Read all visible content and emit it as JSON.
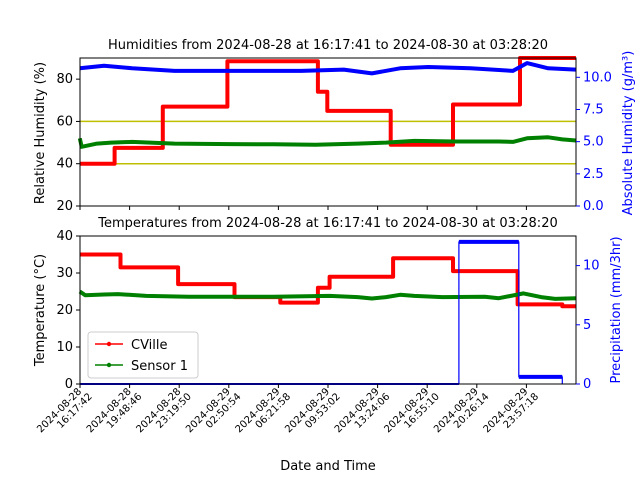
{
  "chart_data": [
    {
      "type": "line",
      "title": "Humidities from 2024-08-28 at 16:17:41 to 2024-08-30 at 03:28:20",
      "ylabel": "Relative Humidity (%)",
      "ylabel_right": "Absolute Humidity (g/m³)",
      "ylim": [
        20,
        90
      ],
      "ylim_right": [
        0,
        11.5
      ],
      "yticks": [
        "20",
        "40",
        "60",
        "80"
      ],
      "yticks_right": [
        "0.0",
        "2.5",
        "5.0",
        "7.5",
        "10.0"
      ],
      "reference_lines": [
        40,
        60
      ],
      "series": [
        {
          "color": "#ff0000",
          "axis": "left",
          "steps": [
            [
              "2024-08-28 16:17",
              40
            ],
            [
              "2024-08-28 18:45",
              40
            ],
            [
              "2024-08-28 18:45",
              47.5
            ],
            [
              "2024-08-28 22:10",
              47.5
            ],
            [
              "2024-08-28 22:10",
              67
            ],
            [
              "2024-08-29 02:45",
              67
            ],
            [
              "2024-08-29 02:45",
              88.5
            ],
            [
              "2024-08-29 09:10",
              88.5
            ],
            [
              "2024-08-29 09:10",
              74
            ],
            [
              "2024-08-29 09:50",
              74
            ],
            [
              "2024-08-29 09:50",
              65
            ],
            [
              "2024-08-29 14:20",
              65
            ],
            [
              "2024-08-29 14:20",
              49
            ],
            [
              "2024-08-29 18:45",
              49
            ],
            [
              "2024-08-29 18:45",
              68
            ],
            [
              "2024-08-29 23:30",
              68
            ],
            [
              "2024-08-29 23:30",
              90
            ],
            [
              "2024-08-30 03:28",
              90
            ]
          ]
        },
        {
          "color": "#008000",
          "axis": "left",
          "points": [
            [
              "2024-08-28 16:17",
              52
            ],
            [
              "2024-08-28 16:25",
              48
            ],
            [
              "2024-08-28 17:30",
              49.5
            ],
            [
              "2024-08-28 18:30",
              50
            ],
            [
              "2024-08-28 20:00",
              50.3
            ],
            [
              "2024-08-28 23:00",
              49.5
            ],
            [
              "2024-08-29 03:00",
              49.3
            ],
            [
              "2024-08-29 06:00",
              49.2
            ],
            [
              "2024-08-29 09:00",
              49
            ],
            [
              "2024-08-29 12:00",
              49.5
            ],
            [
              "2024-08-29 14:00",
              50
            ],
            [
              "2024-08-29 16:00",
              50.8
            ],
            [
              "2024-08-29 19:00",
              50.5
            ],
            [
              "2024-08-29 22:00",
              50.5
            ],
            [
              "2024-08-29 23:00",
              50.3
            ],
            [
              "2024-08-30 00:00",
              52
            ],
            [
              "2024-08-30 01:30",
              52.5
            ],
            [
              "2024-08-30 02:30",
              51.5
            ],
            [
              "2024-08-30 03:28",
              51
            ]
          ]
        },
        {
          "color": "#0000ff",
          "axis": "right",
          "points": [
            [
              "2024-08-28 16:17",
              10.7
            ],
            [
              "2024-08-28 18:00",
              10.9
            ],
            [
              "2024-08-28 20:00",
              10.7
            ],
            [
              "2024-08-28 23:00",
              10.5
            ],
            [
              "2024-08-29 03:00",
              10.5
            ],
            [
              "2024-08-29 08:00",
              10.5
            ],
            [
              "2024-08-29 11:00",
              10.6
            ],
            [
              "2024-08-29 13:00",
              10.3
            ],
            [
              "2024-08-29 15:00",
              10.7
            ],
            [
              "2024-08-29 17:00",
              10.8
            ],
            [
              "2024-08-29 20:00",
              10.7
            ],
            [
              "2024-08-29 23:00",
              10.5
            ],
            [
              "2024-08-30 00:00",
              11.1
            ],
            [
              "2024-08-30 01:30",
              10.7
            ],
            [
              "2024-08-30 03:28",
              10.6
            ]
          ]
        }
      ]
    },
    {
      "type": "line",
      "title": "Temperatures from 2024-08-28 at 16:17:41 to 2024-08-30 at 03:28:20",
      "xlabel": "Date and Time",
      "ylabel": "Temperature (°C)",
      "ylabel_right": "Precipitation (mm/3hr)",
      "xlim": [
        "2024-08-28 16:17:42",
        "2024-08-30 03:28:20"
      ],
      "ylim": [
        0,
        40
      ],
      "ylim_right": [
        0,
        12.5
      ],
      "yticks": [
        "0",
        "10",
        "20",
        "30",
        "40"
      ],
      "yticks_right": [
        "0",
        "5",
        "10"
      ],
      "xticks": [
        {
          "date": "2024-08-28",
          "time": "16:17:42",
          "at": "2024-08-28 16:17:42"
        },
        {
          "date": "2024-08-28",
          "time": "19:48:46",
          "at": "2024-08-28 19:48:46"
        },
        {
          "date": "2024-08-28",
          "time": "23:19:50",
          "at": "2024-08-28 23:19:50"
        },
        {
          "date": "2024-08-29",
          "time": "02:50:54",
          "at": "2024-08-29 02:50:54"
        },
        {
          "date": "2024-08-29",
          "time": "06:21:58",
          "at": "2024-08-29 06:21:58"
        },
        {
          "date": "2024-08-29",
          "time": "09:53:02",
          "at": "2024-08-29 09:53:02"
        },
        {
          "date": "2024-08-29",
          "time": "13:24:06",
          "at": "2024-08-29 13:24:06"
        },
        {
          "date": "2024-08-29",
          "time": "16:55:10",
          "at": "2024-08-29 16:55:10"
        },
        {
          "date": "2024-08-29",
          "time": "20:26:14",
          "at": "2024-08-29 20:26:14"
        },
        {
          "date": "2024-08-29",
          "time": "23:57:18",
          "at": "2024-08-29 23:57:18"
        }
      ],
      "legend": {
        "placement": "lower-left"
      },
      "series": [
        {
          "name": "CVille",
          "color": "#ff0000",
          "axis": "left",
          "steps": [
            [
              "2024-08-28 16:17",
              35
            ],
            [
              "2024-08-28 19:10",
              35
            ],
            [
              "2024-08-28 19:10",
              31.5
            ],
            [
              "2024-08-28 23:15",
              31.5
            ],
            [
              "2024-08-28 23:15",
              27
            ],
            [
              "2024-08-29 03:15",
              27
            ],
            [
              "2024-08-29 03:15",
              23.5
            ],
            [
              "2024-08-29 06:30",
              23.5
            ],
            [
              "2024-08-29 06:30",
              22
            ],
            [
              "2024-08-29 09:10",
              22
            ],
            [
              "2024-08-29 09:10",
              26
            ],
            [
              "2024-08-29 10:00",
              26
            ],
            [
              "2024-08-29 10:00",
              29
            ],
            [
              "2024-08-29 14:30",
              29
            ],
            [
              "2024-08-29 14:30",
              34
            ],
            [
              "2024-08-29 18:45",
              34
            ],
            [
              "2024-08-29 18:45",
              30.5
            ],
            [
              "2024-08-29 23:20",
              30.5
            ],
            [
              "2024-08-29 23:20",
              21.5
            ],
            [
              "2024-08-30 02:30",
              21.5
            ],
            [
              "2024-08-30 02:30",
              21
            ],
            [
              "2024-08-30 03:28",
              21
            ]
          ]
        },
        {
          "name": "Sensor 1",
          "color": "#008000",
          "axis": "left",
          "points": [
            [
              "2024-08-28 16:17",
              25
            ],
            [
              "2024-08-28 16:40",
              24
            ],
            [
              "2024-08-28 18:00",
              24.2
            ],
            [
              "2024-08-28 19:00",
              24.3
            ],
            [
              "2024-08-28 21:00",
              23.8
            ],
            [
              "2024-08-29 00:00",
              23.6
            ],
            [
              "2024-08-29 06:00",
              23.6
            ],
            [
              "2024-08-29 10:00",
              23.8
            ],
            [
              "2024-08-29 12:00",
              23.5
            ],
            [
              "2024-08-29 13:00",
              23.1
            ],
            [
              "2024-08-29 14:00",
              23.5
            ],
            [
              "2024-08-29 15:00",
              24.1
            ],
            [
              "2024-08-29 16:00",
              23.8
            ],
            [
              "2024-08-29 18:00",
              23.5
            ],
            [
              "2024-08-29 21:00",
              23.6
            ],
            [
              "2024-08-29 22:00",
              23.2
            ],
            [
              "2024-08-29 23:45",
              24.5
            ],
            [
              "2024-08-30 01:00",
              23.5
            ],
            [
              "2024-08-30 02:00",
              23
            ],
            [
              "2024-08-30 03:28",
              23.2
            ]
          ]
        },
        {
          "color": "#0000ff",
          "axis": "right",
          "steps": [
            [
              "2024-08-28 16:17",
              0
            ],
            [
              "2024-08-29 19:10",
              0
            ],
            [
              "2024-08-29 19:10",
              12
            ],
            [
              "2024-08-29 23:25",
              12
            ],
            [
              "2024-08-29 23:25",
              0.6
            ],
            [
              "2024-08-30 02:30",
              0.6
            ],
            [
              "2024-08-30 02:30",
              0
            ]
          ]
        }
      ]
    }
  ]
}
